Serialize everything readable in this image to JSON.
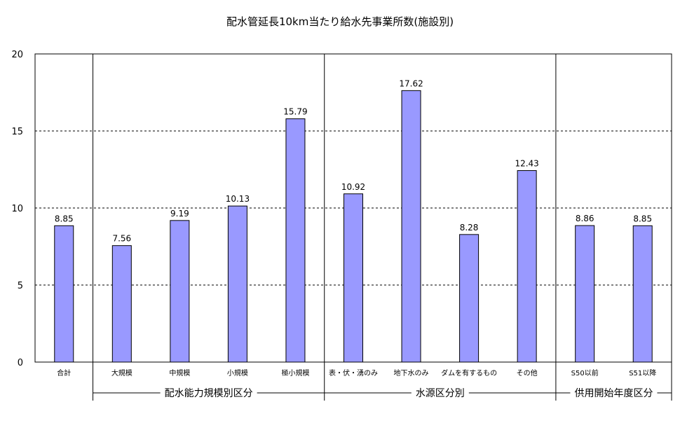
{
  "chart_data": {
    "type": "bar",
    "title": "配水管延長10km当たり給水先事業所数(施設別)",
    "categories": [
      "合計",
      "大規模",
      "中規模",
      "小規模",
      "極小規模",
      "表・伏・湧のみ",
      "地下水のみ",
      "ダムを有するもの",
      "その他",
      "S50以前",
      "S51以降"
    ],
    "values": [
      8.85,
      7.56,
      9.19,
      10.13,
      15.79,
      10.92,
      17.62,
      8.28,
      12.43,
      8.86,
      8.85
    ],
    "data_labels": [
      "8.85",
      "7.56",
      "9.19",
      "10.13",
      "15.79",
      "10.92",
      "17.62",
      "8.28",
      "12.43",
      "8.86",
      "8.85"
    ],
    "groups": [
      {
        "label": "配水能力規模別区分",
        "start": 1,
        "end": 4
      },
      {
        "label": "水源区分別",
        "start": 5,
        "end": 8
      },
      {
        "label": "供用開始年度区分",
        "start": 9,
        "end": 10
      }
    ],
    "ylim": [
      0,
      20
    ],
    "yticks": [
      0,
      5,
      10,
      15,
      20
    ],
    "xlabel": "",
    "ylabel": "",
    "grid": "horizontal dashed",
    "legend": "none",
    "bar_color": "#9999ff",
    "bar_edge_color": "#000000"
  }
}
